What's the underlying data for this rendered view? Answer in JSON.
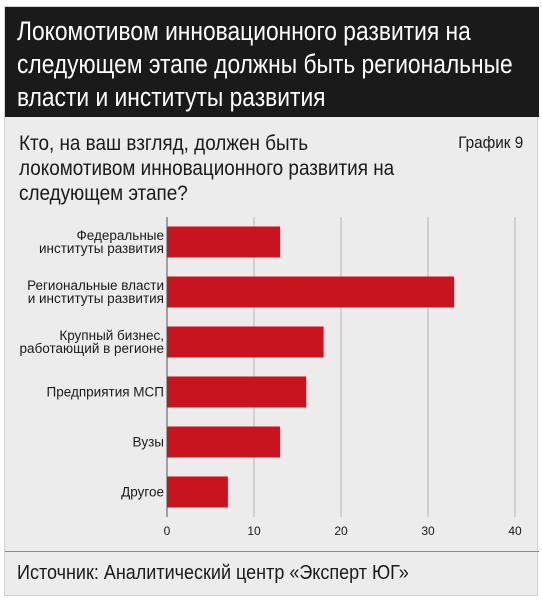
{
  "header": {
    "title": "Локомотивом инновационного развития на следующем этапе должны быть региональные власти и институты развития"
  },
  "question": "Кто, на ваш взгляд, должен быть локомотивом инновационного развития на следующем этапе?",
  "chart_label": "График 9",
  "footer": {
    "source": "Источник: Аналитический центр «Эксперт ЮГ»"
  },
  "colors": {
    "bar": "#c8141e",
    "header_bg": "#1a1a1a",
    "panel_bg": "#ececec"
  },
  "chart_data": {
    "type": "bar",
    "orientation": "horizontal",
    "categories": [
      [
        "Федеральные",
        "институты развития"
      ],
      [
        "Региональные власти",
        "и институты развития"
      ],
      [
        "Крупный бизнес,",
        "работающий в регионе"
      ],
      [
        "Предприятия МСП"
      ],
      [
        "Вузы"
      ],
      [
        "Другое"
      ]
    ],
    "values": [
      13,
      33,
      18,
      16,
      13,
      7
    ],
    "x_ticks": [
      "0",
      "10",
      "20",
      "30",
      "40"
    ],
    "xlim": [
      0,
      40
    ],
    "grid": true
  }
}
